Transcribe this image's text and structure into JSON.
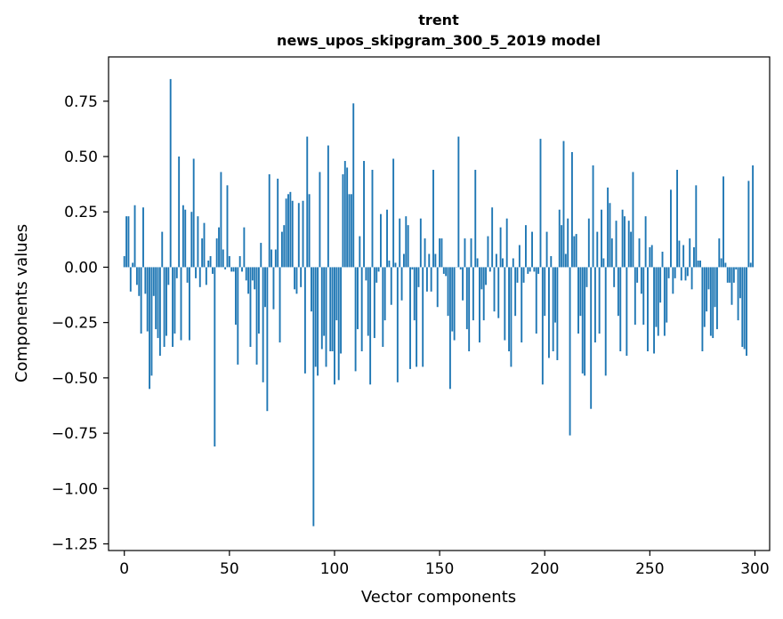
{
  "chart_data": {
    "type": "bar",
    "title": "trent",
    "subtitle": "news_upos_skipgram_300_5_2019 model",
    "xlabel": "Vector components",
    "ylabel": "Components values",
    "xlim": [
      -7.5,
      307
    ],
    "ylim": [
      -1.28,
      0.95
    ],
    "xticks": [
      0,
      50,
      100,
      150,
      200,
      250,
      300
    ],
    "yticks": [
      0.75,
      0.5,
      0.25,
      0.0,
      -0.25,
      -0.5,
      -0.75,
      -1.0,
      -1.25
    ],
    "ytick_labels": [
      "0.75",
      "0.50",
      "0.25",
      "0.00",
      "−0.25",
      "−0.50",
      "−0.75",
      "−1.00",
      "−1.25"
    ],
    "bar_color": "#1f77b4",
    "grid": false,
    "values": [
      0.05,
      0.23,
      0.23,
      -0.11,
      0.02,
      0.28,
      -0.08,
      -0.13,
      -0.3,
      0.27,
      -0.12,
      -0.29,
      -0.55,
      -0.49,
      -0.13,
      -0.28,
      -0.32,
      -0.4,
      0.16,
      -0.36,
      -0.31,
      -0.08,
      0.85,
      -0.36,
      -0.3,
      -0.05,
      0.5,
      -0.33,
      0.28,
      0.26,
      -0.07,
      -0.33,
      0.25,
      0.49,
      -0.05,
      0.23,
      -0.09,
      0.13,
      0.2,
      -0.08,
      0.03,
      0.05,
      -0.03,
      -0.81,
      0.13,
      0.18,
      0.43,
      0.08,
      -0.01,
      0.37,
      0.05,
      -0.02,
      -0.02,
      -0.26,
      -0.44,
      0.05,
      -0.02,
      0.18,
      -0.06,
      -0.12,
      -0.36,
      -0.06,
      -0.1,
      -0.44,
      -0.3,
      0.11,
      -0.52,
      -0.18,
      -0.65,
      0.42,
      0.08,
      -0.19,
      0.08,
      0.4,
      -0.34,
      0.16,
      0.19,
      0.31,
      0.33,
      0.34,
      0.3,
      -0.1,
      -0.12,
      0.29,
      -0.09,
      0.3,
      -0.48,
      0.59,
      0.33,
      -0.2,
      -1.17,
      -0.45,
      -0.49,
      0.43,
      -0.37,
      -0.31,
      -0.45,
      0.55,
      -0.38,
      -0.38,
      -0.53,
      -0.24,
      -0.51,
      -0.39,
      0.42,
      0.48,
      0.45,
      0.33,
      0.33,
      0.74,
      -0.47,
      -0.28,
      0.14,
      -0.38,
      0.48,
      -0.06,
      -0.31,
      -0.53,
      0.44,
      -0.32,
      -0.07,
      -0.02,
      0.24,
      -0.36,
      -0.24,
      0.26,
      0.03,
      -0.17,
      0.49,
      0.02,
      -0.52,
      0.22,
      -0.15,
      0.06,
      0.23,
      0.19,
      -0.46,
      -0.01,
      -0.24,
      -0.45,
      -0.09,
      0.22,
      -0.45,
      0.13,
      -0.11,
      0.06,
      -0.11,
      0.44,
      0.06,
      -0.18,
      0.13,
      0.13,
      -0.03,
      -0.04,
      -0.22,
      -0.55,
      -0.29,
      -0.33,
      0.0,
      0.59,
      -0.01,
      -0.15,
      0.13,
      -0.28,
      -0.38,
      0.13,
      -0.24,
      0.44,
      0.04,
      -0.34,
      -0.1,
      -0.24,
      -0.08,
      0.14,
      -0.02,
      0.27,
      -0.2,
      0.06,
      -0.23,
      0.18,
      0.04,
      -0.33,
      0.22,
      -0.38,
      -0.45,
      0.04,
      -0.22,
      -0.07,
      0.1,
      -0.34,
      -0.07,
      0.19,
      -0.03,
      -0.02,
      0.16,
      -0.02,
      -0.3,
      -0.03,
      0.58,
      -0.53,
      -0.22,
      0.16,
      -0.41,
      0.05,
      -0.38,
      -0.25,
      -0.42,
      0.26,
      0.19,
      0.57,
      0.06,
      0.22,
      -0.76,
      0.52,
      0.14,
      0.15,
      -0.3,
      -0.22,
      -0.48,
      -0.49,
      -0.09,
      0.22,
      -0.64,
      0.46,
      -0.34,
      0.16,
      -0.3,
      0.26,
      0.04,
      -0.49,
      0.36,
      0.29,
      0.13,
      -0.09,
      0.21,
      -0.22,
      -0.38,
      0.26,
      0.23,
      -0.4,
      0.21,
      0.16,
      0.43,
      -0.26,
      -0.07,
      0.13,
      -0.12,
      -0.26,
      0.23,
      -0.38,
      0.09,
      0.1,
      -0.39,
      -0.27,
      -0.31,
      -0.16,
      0.07,
      -0.31,
      -0.25,
      -0.05,
      0.35,
      -0.12,
      -0.05,
      0.44,
      0.12,
      -0.06,
      0.1,
      -0.06,
      -0.04,
      0.13,
      -0.1,
      0.09,
      0.37,
      0.03,
      0.03,
      -0.38,
      -0.27,
      -0.2,
      -0.1,
      -0.31,
      -0.32,
      -0.18,
      -0.28,
      0.13,
      0.04,
      0.41,
      0.02,
      -0.07,
      -0.07,
      -0.17,
      -0.07,
      -0.01,
      -0.24,
      -0.14,
      -0.36,
      -0.37,
      -0.4,
      0.39,
      0.02,
      0.46
    ]
  }
}
